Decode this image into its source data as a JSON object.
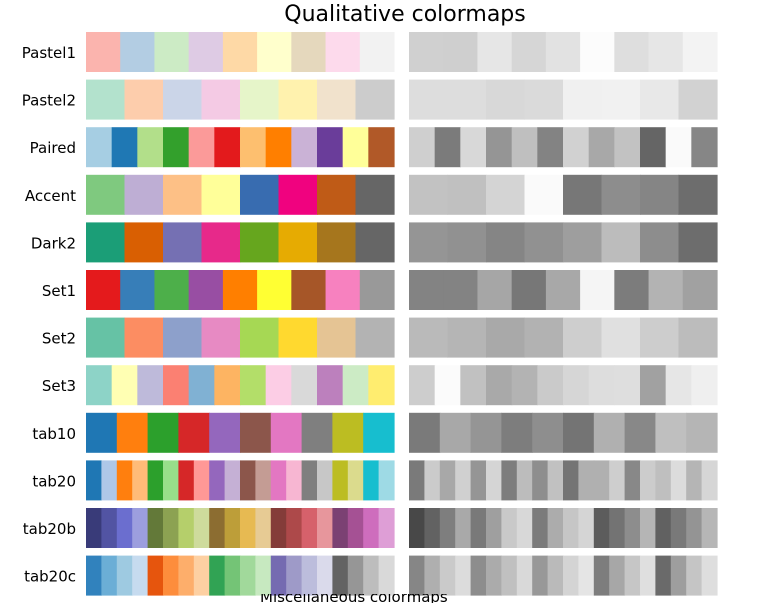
{
  "chart_data": {
    "type": "heatmap",
    "title": "Qualitative colormaps",
    "grid": false,
    "legend": "none",
    "colormaps": [
      {
        "name": "Pastel1",
        "colors": [
          "#fbb4ae",
          "#b3cde3",
          "#ccebc5",
          "#decbe4",
          "#fed9a6",
          "#ffffcc",
          "#e5d8bd",
          "#fddaec",
          "#f2f2f2"
        ],
        "lightness": [
          0.817,
          0.811,
          0.901,
          0.841,
          0.885,
          0.987,
          0.871,
          0.903,
          0.954
        ]
      },
      {
        "name": "Pastel2",
        "colors": [
          "#b3e2cd",
          "#fdcdac",
          "#cbd5e8",
          "#f4cae4",
          "#e6f5c9",
          "#fff2ae",
          "#f1e2cc",
          "#cccccc"
        ],
        "lightness": [
          0.867,
          0.868,
          0.848,
          0.853,
          0.942,
          0.947,
          0.909,
          0.823
        ]
      },
      {
        "name": "Paired",
        "colors": [
          "#a6cee3",
          "#1f78b4",
          "#b2df8a",
          "#33a02c",
          "#fb9a99",
          "#e31a1c",
          "#fdbf6f",
          "#ff7f00",
          "#cab2d6",
          "#6a3d9a",
          "#ffff99",
          "#b15928"
        ],
        "lightness": [
          0.811,
          0.483,
          0.848,
          0.584,
          0.75,
          0.512,
          0.821,
          0.657,
          0.76,
          0.398,
          0.98,
          0.524
        ]
      },
      {
        "name": "Accent",
        "colors": [
          "#7fc97f",
          "#beaed4",
          "#fdc086",
          "#ffff99",
          "#386cb0",
          "#f0027f",
          "#bf5b17",
          "#666666"
        ],
        "lightness": [
          0.761,
          0.754,
          0.833,
          0.98,
          0.467,
          0.554,
          0.523,
          0.426
        ]
      },
      {
        "name": "Dark2",
        "colors": [
          "#1b9e77",
          "#d95f02",
          "#7570b3",
          "#e7298a",
          "#66a61e",
          "#e6ab02",
          "#a6761d",
          "#666666"
        ],
        "lightness": [
          0.586,
          0.568,
          0.523,
          0.57,
          0.619,
          0.737,
          0.553,
          0.426
        ]
      },
      {
        "name": "Set1",
        "colors": [
          "#e41a1c",
          "#377eb8",
          "#4daf4a",
          "#984ea3",
          "#ff7f00",
          "#ffff33",
          "#a65628",
          "#f781bf",
          "#999999"
        ],
        "lightness": [
          0.512,
          0.513,
          0.652,
          0.468,
          0.657,
          0.959,
          0.488,
          0.701,
          0.633
        ]
      },
      {
        "name": "Set2",
        "colors": [
          "#66c2a5",
          "#fc8d62",
          "#8da0cb",
          "#e78ac3",
          "#a6d854",
          "#ffd92f",
          "#e5c494",
          "#b3b3b3"
        ],
        "lightness": [
          0.729,
          0.71,
          0.663,
          0.697,
          0.808,
          0.879,
          0.804,
          0.737
        ]
      },
      {
        "name": "Set3",
        "colors": [
          "#8dd3c7",
          "#ffffb3",
          "#bebada",
          "#fb8072",
          "#80b1d3",
          "#fdb462",
          "#b3de69",
          "#fccde5",
          "#d9d9d9",
          "#bc80bd",
          "#ccebc5",
          "#ffed6f"
        ],
        "lightness": [
          0.803,
          0.983,
          0.755,
          0.661,
          0.703,
          0.794,
          0.839,
          0.866,
          0.871,
          0.633,
          0.901,
          0.937
        ]
      },
      {
        "name": "tab10",
        "colors": [
          "#1f77b4",
          "#ff7f0e",
          "#2ca02c",
          "#d62728",
          "#9467bd",
          "#8c564b",
          "#e377c2",
          "#7f7f7f",
          "#bcbd22",
          "#17becf"
        ],
        "lightness": [
          0.479,
          0.657,
          0.583,
          0.492,
          0.556,
          0.454,
          0.689,
          0.535,
          0.748,
          0.71
        ]
      },
      {
        "name": "tab20",
        "colors": [
          "#1f77b4",
          "#aec7e8",
          "#ff7f0e",
          "#ffbb78",
          "#2ca02c",
          "#98df8a",
          "#d62728",
          "#ff9896",
          "#9467bd",
          "#c5b0d5",
          "#8c564b",
          "#c49c94",
          "#e377c2",
          "#f7b6d2",
          "#7f7f7f",
          "#c7c7c7",
          "#bcbd22",
          "#dbdb8d",
          "#17becf",
          "#9edae5"
        ],
        "lightness": [
          0.479,
          0.796,
          0.657,
          0.814,
          0.583,
          0.837,
          0.492,
          0.736,
          0.556,
          0.758,
          0.454,
          0.692,
          0.689,
          0.806,
          0.535,
          0.801,
          0.748,
          0.861,
          0.71,
          0.841
        ]
      },
      {
        "name": "tab20b",
        "colors": [
          "#393b79",
          "#5254a3",
          "#6b6ecf",
          "#9c9ede",
          "#637939",
          "#8ca252",
          "#b5cf6b",
          "#cedb9c",
          "#8c6d31",
          "#bd9e39",
          "#e7ba52",
          "#e7cb94",
          "#843c39",
          "#ad494a",
          "#d6616b",
          "#e7969c",
          "#7b4173",
          "#a55194",
          "#ce6dbd",
          "#de9ed6"
        ],
        "lightness": [
          0.284,
          0.384,
          0.494,
          0.664,
          0.475,
          0.624,
          0.787,
          0.847,
          0.484,
          0.673,
          0.776,
          0.834,
          0.359,
          0.45,
          0.551,
          0.709,
          0.379,
          0.473,
          0.582,
          0.715
        ]
      },
      {
        "name": "tab20c",
        "colors": [
          "#3182bd",
          "#6baed6",
          "#9ecae1",
          "#c6dbef",
          "#e6550d",
          "#fd8d3c",
          "#fdae6b",
          "#fdd0a2",
          "#31a354",
          "#74c476",
          "#a1d99b",
          "#c7e9c0",
          "#756bb1",
          "#9e9ac8",
          "#bcbddc",
          "#dadaeb",
          "#636363",
          "#969696",
          "#bdbdbd",
          "#d9d9d9"
        ],
        "lightness": [
          0.524,
          0.687,
          0.793,
          0.862,
          0.553,
          0.672,
          0.751,
          0.852,
          0.597,
          0.729,
          0.833,
          0.898,
          0.492,
          0.656,
          0.777,
          0.873,
          0.417,
          0.619,
          0.771,
          0.871
        ]
      }
    ]
  },
  "caption": "Miscellaneous colormaps"
}
